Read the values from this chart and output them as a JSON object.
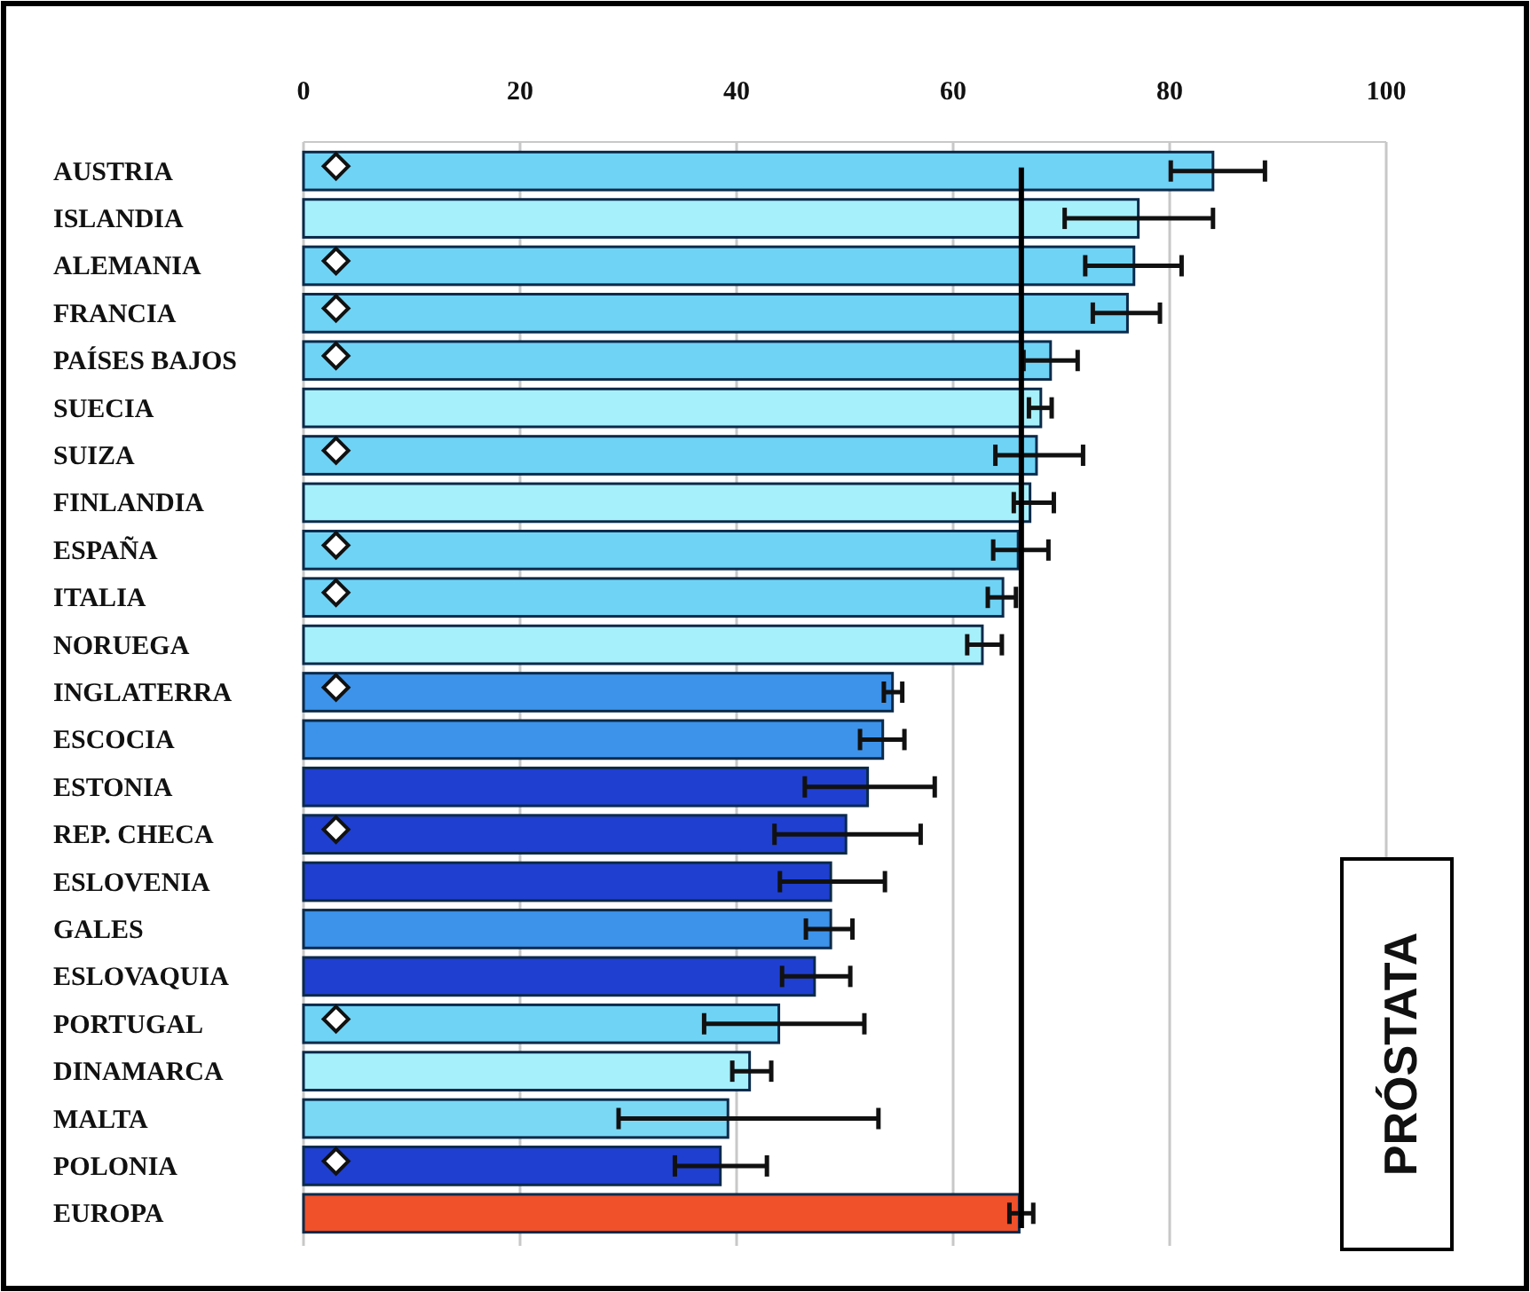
{
  "chart_data": {
    "type": "bar",
    "orientation": "horizontal",
    "categories": [
      "AUSTRIA",
      "ISLANDIA",
      "ALEMANIA",
      "FRANCIA",
      "PAÍSES BAJOS",
      "SUECIA",
      "SUIZA",
      "FINLANDIA",
      "ESPAÑA",
      "ITALIA",
      "NORUEGA",
      "INGLATERRA",
      "ESCOCIA",
      "ESTONIA",
      "REP. CHECA",
      "ESLOVENIA",
      "GALES",
      "ESLOVAQUIA",
      "PORTUGAL",
      "DINAMARCA",
      "MALTA",
      "POLONIA",
      "EUROPA"
    ],
    "series": [
      {
        "values": [
          84.0,
          77.1,
          76.7,
          76.1,
          69.0,
          68.1,
          67.7,
          67.1,
          66.0,
          64.6,
          62.7,
          54.4,
          53.5,
          52.1,
          50.1,
          48.7,
          48.7,
          47.2,
          43.9,
          41.2,
          39.2,
          38.5,
          66.1
        ],
        "colors": [
          "#6fd3f5",
          "#a6f0fb",
          "#6fd3f5",
          "#6fd3f5",
          "#6fd3f5",
          "#a6f0fb",
          "#6fd3f5",
          "#a6f0fb",
          "#6fd3f5",
          "#6fd3f5",
          "#a6f0fb",
          "#3d93ea",
          "#3d93ea",
          "#1f3fd0",
          "#1f3fd0",
          "#1f3fd0",
          "#3d93ea",
          "#1f3fd0",
          "#6fd3f5",
          "#a6f0fb",
          "#7ad8f5",
          "#1f3fd0",
          "#f0502a"
        ],
        "errors": [
          [
            80.1,
            88.8
          ],
          [
            70.3,
            84.0
          ],
          [
            72.2,
            81.1
          ],
          [
            72.9,
            79.1
          ],
          [
            66.5,
            71.5
          ],
          [
            67.0,
            69.1
          ],
          [
            63.9,
            72.0
          ],
          [
            65.6,
            69.3
          ],
          [
            63.7,
            68.8
          ],
          [
            63.2,
            65.8
          ],
          [
            61.3,
            64.5
          ],
          [
            53.6,
            55.3
          ],
          [
            51.4,
            55.5
          ],
          [
            46.3,
            58.3
          ],
          [
            43.5,
            57.0
          ],
          [
            44.0,
            53.7
          ],
          [
            46.4,
            50.7
          ],
          [
            44.2,
            50.5
          ],
          [
            37.0,
            51.8
          ],
          [
            39.6,
            43.2
          ],
          [
            29.1,
            53.1
          ],
          [
            34.3,
            42.8
          ],
          [
            65.2,
            67.4
          ]
        ]
      },
      {
        "type": "scatter",
        "marker": "diamond",
        "color": "#ffffff",
        "x": [
          "AUSTRIA",
          "ALEMANIA",
          "FRANCIA",
          "PAÍSES BAJOS",
          "SUIZA",
          "ESPAÑA",
          "ITALIA",
          "INGLATERRA",
          "REP. CHECA",
          "PORTUGAL",
          "POLONIA"
        ],
        "values": [
          3,
          3,
          3,
          3,
          3,
          3,
          3,
          3,
          3,
          3,
          3
        ]
      }
    ],
    "xlim": [
      0,
      100
    ],
    "xticks": [
      0,
      20,
      40,
      60,
      80,
      100
    ],
    "grid": "x",
    "ref_lines": [
      {
        "axis": "x",
        "value": 66.3,
        "color": "#000000"
      }
    ],
    "annotations": [
      "PRÓSTATA"
    ]
  }
}
